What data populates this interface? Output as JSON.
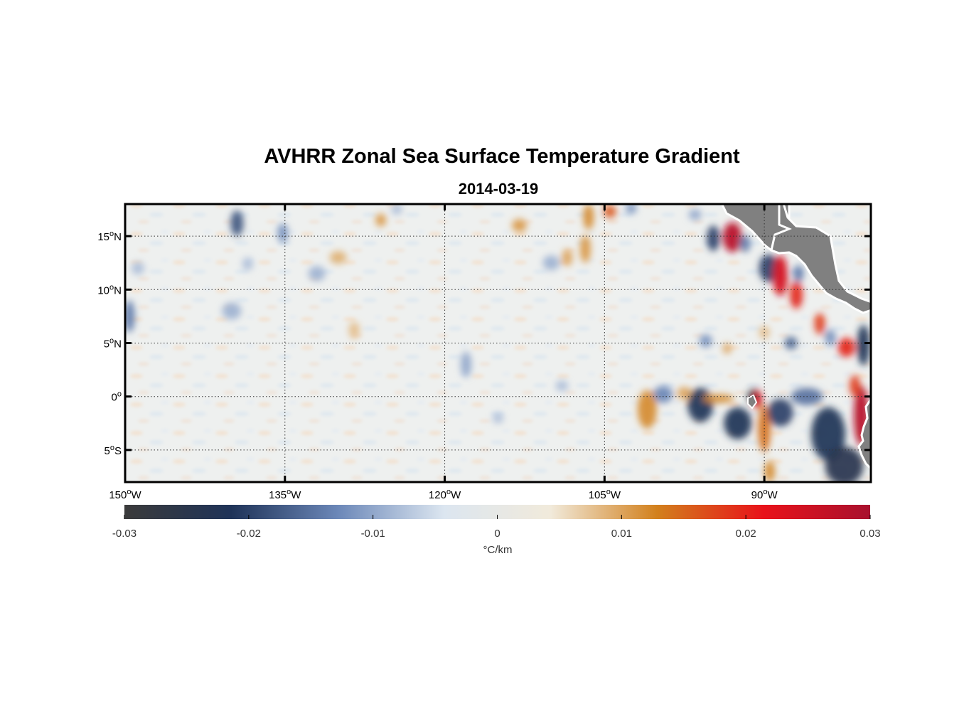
{
  "title": "AVHRR Zonal Sea Surface Temperature Gradient",
  "subtitle": "2014-03-19",
  "map": {
    "lon_range": [
      -150,
      -80
    ],
    "lat_range": [
      -8,
      18
    ],
    "lon_ticks": [
      {
        "value": -150,
        "label": "150",
        "sup": "o",
        "hemi": "W"
      },
      {
        "value": -135,
        "label": "135",
        "sup": "o",
        "hemi": "W"
      },
      {
        "value": -120,
        "label": "120",
        "sup": "o",
        "hemi": "W"
      },
      {
        "value": -105,
        "label": "105",
        "sup": "o",
        "hemi": "W"
      },
      {
        "value": -90,
        "label": "90",
        "sup": "o",
        "hemi": "W"
      }
    ],
    "lat_ticks": [
      {
        "value": 15,
        "label": "15",
        "sup": "o",
        "hemi": "N"
      },
      {
        "value": 10,
        "label": "10",
        "sup": "o",
        "hemi": "N"
      },
      {
        "value": 5,
        "label": "5",
        "sup": "o",
        "hemi": "N"
      },
      {
        "value": 0,
        "label": "0",
        "sup": "o",
        "hemi": ""
      },
      {
        "value": -5,
        "label": "5",
        "sup": "o",
        "hemi": "S"
      }
    ],
    "grid": "dotted",
    "land_color": "#808080"
  },
  "colorbar": {
    "min": -0.03,
    "max": 0.03,
    "ticks": [
      {
        "value": -0.03,
        "label": "-0.03"
      },
      {
        "value": -0.02,
        "label": "-0.02"
      },
      {
        "value": -0.01,
        "label": "-0.01"
      },
      {
        "value": 0,
        "label": "0"
      },
      {
        "value": 0.01,
        "label": "0.01"
      },
      {
        "value": 0.02,
        "label": "0.02"
      },
      {
        "value": 0.03,
        "label": "0.03"
      }
    ],
    "unit_label": "°C/km",
    "colors": [
      "#3b3b3b",
      "#1f3358",
      "#6b87b8",
      "#dce6f0",
      "#f1eadb",
      "#d2801c",
      "#e8121a",
      "#a8112e"
    ]
  },
  "features": [
    {
      "lon": -139.5,
      "lat": 16.2,
      "v": -0.018,
      "rx": 0.6,
      "ry": 1.2
    },
    {
      "lon": -135.2,
      "lat": 15.3,
      "v": -0.012,
      "rx": 0.5,
      "ry": 0.9
    },
    {
      "lon": -148.8,
      "lat": 12.0,
      "v": -0.008,
      "rx": 0.6,
      "ry": 0.6
    },
    {
      "lon": -149.6,
      "lat": 7.5,
      "v": -0.014,
      "rx": 0.5,
      "ry": 1.5
    },
    {
      "lon": -140.0,
      "lat": 8.0,
      "v": -0.009,
      "rx": 0.9,
      "ry": 0.8
    },
    {
      "lon": -138.5,
      "lat": 12.4,
      "v": -0.008,
      "rx": 0.5,
      "ry": 0.6
    },
    {
      "lon": -132.0,
      "lat": 11.5,
      "v": -0.009,
      "rx": 0.8,
      "ry": 0.7
    },
    {
      "lon": -130.0,
      "lat": 13.0,
      "v": 0.009,
      "rx": 0.8,
      "ry": 0.6
    },
    {
      "lon": -128.5,
      "lat": 6.2,
      "v": 0.008,
      "rx": 0.5,
      "ry": 0.8
    },
    {
      "lon": -126.0,
      "lat": 16.5,
      "v": 0.011,
      "rx": 0.5,
      "ry": 0.6
    },
    {
      "lon": -124.5,
      "lat": 17.5,
      "v": -0.008,
      "rx": 0.5,
      "ry": 0.5
    },
    {
      "lon": -118.0,
      "lat": 3.0,
      "v": -0.01,
      "rx": 0.5,
      "ry": 1.2
    },
    {
      "lon": -113.0,
      "lat": 16.0,
      "v": 0.011,
      "rx": 0.7,
      "ry": 0.6
    },
    {
      "lon": -110.0,
      "lat": 12.5,
      "v": -0.009,
      "rx": 0.8,
      "ry": 0.7
    },
    {
      "lon": -108.5,
      "lat": 13.0,
      "v": 0.01,
      "rx": 0.5,
      "ry": 0.8
    },
    {
      "lon": -106.5,
      "lat": 16.8,
      "v": 0.012,
      "rx": 0.5,
      "ry": 1.2
    },
    {
      "lon": -106.8,
      "lat": 13.8,
      "v": 0.011,
      "rx": 0.5,
      "ry": 1.3
    },
    {
      "lon": -104.5,
      "lat": 17.3,
      "v": 0.016,
      "rx": 0.6,
      "ry": 0.6
    },
    {
      "lon": -102.5,
      "lat": 17.6,
      "v": -0.012,
      "rx": 0.5,
      "ry": 0.5
    },
    {
      "lon": -115.0,
      "lat": -2.0,
      "v": -0.008,
      "rx": 0.5,
      "ry": 0.5
    },
    {
      "lon": -109.0,
      "lat": 1.0,
      "v": -0.008,
      "rx": 0.6,
      "ry": 0.5
    },
    {
      "lon": -101.0,
      "lat": -1.2,
      "v": 0.012,
      "rx": 0.9,
      "ry": 1.8
    },
    {
      "lon": -99.5,
      "lat": 0.2,
      "v": -0.013,
      "rx": 0.9,
      "ry": 0.8
    },
    {
      "lon": -97.5,
      "lat": 0.3,
      "v": 0.01,
      "rx": 0.7,
      "ry": 0.6
    },
    {
      "lon": -96.0,
      "lat": -0.8,
      "v": -0.022,
      "rx": 1.2,
      "ry": 1.6
    },
    {
      "lon": -94.3,
      "lat": -0.2,
      "v": 0.012,
      "rx": 1.5,
      "ry": 0.4
    },
    {
      "lon": -92.5,
      "lat": -2.5,
      "v": -0.022,
      "rx": 1.3,
      "ry": 1.5
    },
    {
      "lon": -91.0,
      "lat": 0.0,
      "v": -0.028,
      "rx": 0.6,
      "ry": 0.7
    },
    {
      "lon": -90.6,
      "lat": -0.3,
      "v": 0.024,
      "rx": 0.4,
      "ry": 0.9
    },
    {
      "lon": -90.0,
      "lat": -3.0,
      "v": 0.014,
      "rx": 0.6,
      "ry": 2.2
    },
    {
      "lon": -89.5,
      "lat": -7.0,
      "v": 0.012,
      "rx": 0.5,
      "ry": 1.0
    },
    {
      "lon": -88.5,
      "lat": -1.5,
      "v": -0.02,
      "rx": 1.2,
      "ry": 1.3
    },
    {
      "lon": -86.0,
      "lat": 0.0,
      "v": -0.015,
      "rx": 1.5,
      "ry": 0.8
    },
    {
      "lon": -84.0,
      "lat": -3.5,
      "v": -0.022,
      "rx": 1.6,
      "ry": 2.5
    },
    {
      "lon": -82.5,
      "lat": -6.5,
      "v": -0.024,
      "rx": 1.8,
      "ry": 1.8
    },
    {
      "lon": -80.9,
      "lat": -1.8,
      "v": 0.028,
      "rx": 0.7,
      "ry": 2.8
    },
    {
      "lon": -81.5,
      "lat": 1.0,
      "v": 0.018,
      "rx": 0.5,
      "ry": 1.0
    },
    {
      "lon": -93.0,
      "lat": 14.9,
      "v": 0.028,
      "rx": 0.9,
      "ry": 1.4
    },
    {
      "lon": -94.8,
      "lat": 14.8,
      "v": -0.02,
      "rx": 0.6,
      "ry": 1.2
    },
    {
      "lon": -91.8,
      "lat": 14.3,
      "v": -0.014,
      "rx": 0.5,
      "ry": 0.8
    },
    {
      "lon": -89.6,
      "lat": 12.0,
      "v": -0.02,
      "rx": 0.9,
      "ry": 1.3
    },
    {
      "lon": -88.5,
      "lat": 11.3,
      "v": 0.024,
      "rx": 0.7,
      "ry": 1.9
    },
    {
      "lon": -87.0,
      "lat": 9.5,
      "v": 0.02,
      "rx": 0.6,
      "ry": 1.3
    },
    {
      "lon": -86.8,
      "lat": 11.5,
      "v": -0.014,
      "rx": 0.5,
      "ry": 0.8
    },
    {
      "lon": -84.8,
      "lat": 6.8,
      "v": 0.018,
      "rx": 0.5,
      "ry": 1.0
    },
    {
      "lon": -83.8,
      "lat": 5.5,
      "v": -0.012,
      "rx": 0.5,
      "ry": 0.8
    },
    {
      "lon": -82.3,
      "lat": 4.6,
      "v": 0.02,
      "rx": 0.8,
      "ry": 0.9
    },
    {
      "lon": -80.7,
      "lat": 4.8,
      "v": -0.022,
      "rx": 0.6,
      "ry": 1.9
    },
    {
      "lon": -95.5,
      "lat": 5.2,
      "v": -0.012,
      "rx": 0.6,
      "ry": 0.6
    },
    {
      "lon": -93.5,
      "lat": 4.5,
      "v": 0.01,
      "rx": 0.4,
      "ry": 0.5
    },
    {
      "lon": -87.5,
      "lat": 5.0,
      "v": -0.016,
      "rx": 0.6,
      "ry": 0.6
    },
    {
      "lon": -90.0,
      "lat": 6.0,
      "v": 0.008,
      "rx": 0.5,
      "ry": 0.6
    },
    {
      "lon": -96.5,
      "lat": 17.0,
      "v": -0.01,
      "rx": 0.6,
      "ry": 0.5
    }
  ]
}
